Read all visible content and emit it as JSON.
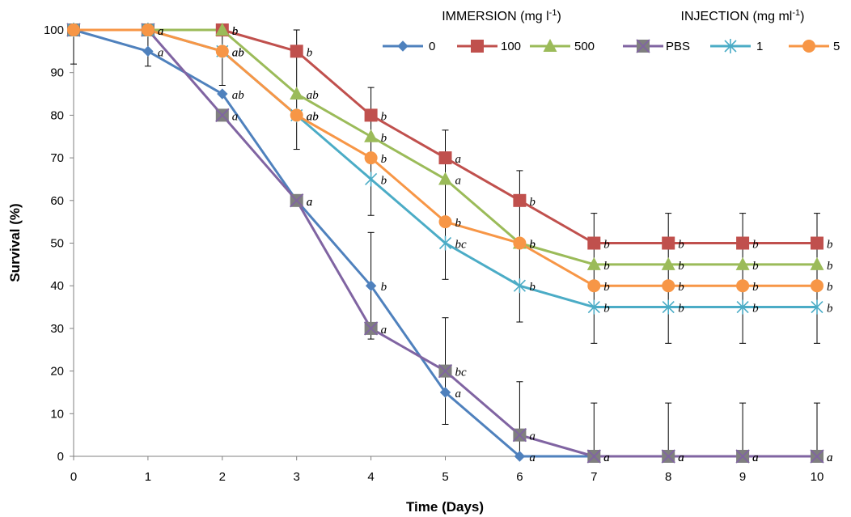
{
  "chart_data": {
    "type": "line",
    "xlabel": "Time (Days)",
    "ylabel": "Survival (%)",
    "x": [
      0,
      1,
      2,
      3,
      4,
      5,
      6,
      7,
      8,
      9,
      10
    ],
    "xlim": [
      0,
      10
    ],
    "ylim": [
      0,
      100
    ],
    "yticks": [
      0,
      10,
      20,
      30,
      40,
      50,
      60,
      70,
      80,
      90,
      100
    ],
    "grid": false,
    "legend_groups": [
      {
        "heading": "IMMERSION (mg l",
        "sup": "-1",
        "tail": ")",
        "series": [
          "0",
          "100",
          "500"
        ]
      },
      {
        "heading": "INJECTION (mg ml",
        "sup": "-1",
        "tail": ")",
        "series": [
          "PBS",
          "1",
          "5"
        ]
      }
    ],
    "series": [
      {
        "name": "0",
        "color": "#4F81BD",
        "marker": "diamond",
        "values": [
          100,
          95,
          85,
          60,
          40,
          15,
          0,
          0,
          0,
          0,
          0
        ],
        "labels": [
          "",
          "a",
          "ab",
          "a",
          "b",
          "a",
          "a",
          "a",
          "a",
          "a",
          "a"
        ]
      },
      {
        "name": "100",
        "color": "#C0504D",
        "marker": "square",
        "values": [
          100,
          100,
          100,
          95,
          80,
          70,
          60,
          50,
          50,
          50,
          50
        ],
        "labels": [
          "",
          "",
          "b",
          "b",
          "b",
          "a",
          "b",
          "b",
          "b",
          "b",
          "b"
        ]
      },
      {
        "name": "500",
        "color": "#9BBB59",
        "marker": "triangle",
        "values": [
          100,
          100,
          100,
          85,
          75,
          65,
          50,
          45,
          45,
          45,
          45
        ],
        "labels": [
          "",
          "a",
          "b",
          "ab",
          "b",
          "a",
          "b",
          "b",
          "b",
          "b",
          "b"
        ]
      },
      {
        "name": "PBS",
        "color": "#8064A2",
        "marker": "xsquare",
        "values": [
          100,
          100,
          80,
          60,
          30,
          20,
          5,
          0,
          0,
          0,
          0
        ],
        "labels": [
          "",
          "",
          "a",
          "a",
          "a",
          "bc",
          "a",
          "a",
          "a",
          "a",
          "a"
        ]
      },
      {
        "name": "1",
        "color": "#4BACC6",
        "marker": "star",
        "values": [
          100,
          100,
          95,
          80,
          65,
          50,
          40,
          35,
          35,
          35,
          35
        ],
        "labels": [
          "",
          "",
          "ab",
          "ab",
          "b",
          "bc",
          "b",
          "b",
          "b",
          "b",
          "b"
        ]
      },
      {
        "name": "5",
        "color": "#F79646",
        "marker": "circle",
        "values": [
          100,
          100,
          95,
          80,
          70,
          55,
          50,
          40,
          40,
          40,
          40
        ],
        "labels": [
          "",
          "a",
          "ab",
          "ab",
          "b",
          "b",
          "b",
          "b",
          "b",
          "b",
          "b"
        ]
      }
    ],
    "error_bars": [
      {
        "x": 0,
        "low": 92,
        "high": 100
      },
      {
        "x": 1,
        "low": 91.5,
        "high": 100
      },
      {
        "x": 2,
        "low": 87,
        "high": 100
      },
      {
        "x": 3,
        "low": 72,
        "high": 100
      },
      {
        "x": 4,
        "low": 56.5,
        "high": 86.5
      },
      {
        "x": 4,
        "low": 27.5,
        "high": 52.5
      },
      {
        "x": 5,
        "low": 41.5,
        "high": 76.5
      },
      {
        "x": 5,
        "low": 7.5,
        "high": 32.5
      },
      {
        "x": 6,
        "low": 31.5,
        "high": 67
      },
      {
        "x": 6,
        "low": 0,
        "high": 17.5
      },
      {
        "x": 7,
        "low": 26.5,
        "high": 57
      },
      {
        "x": 7,
        "low": 0,
        "high": 12.5
      },
      {
        "x": 8,
        "low": 26.5,
        "high": 57
      },
      {
        "x": 8,
        "low": 0,
        "high": 12.5
      },
      {
        "x": 9,
        "low": 26.5,
        "high": 57
      },
      {
        "x": 9,
        "low": 0,
        "high": 12.5
      },
      {
        "x": 10,
        "low": 26.5,
        "high": 57
      },
      {
        "x": 10,
        "low": 0,
        "high": 12.5
      }
    ]
  }
}
